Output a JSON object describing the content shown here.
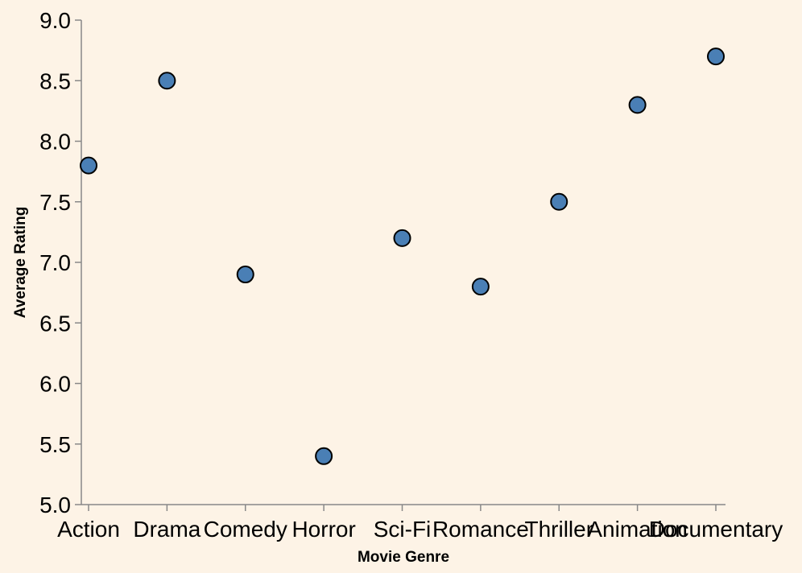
{
  "chart_data": {
    "type": "scatter",
    "xlabel": "Movie Genre",
    "ylabel": "Average Rating",
    "categories": [
      "Action",
      "Drama",
      "Comedy",
      "Horror",
      "Sci-Fi",
      "Romance",
      "Thriller",
      "Animation",
      "Documentary"
    ],
    "values": [
      7.8,
      8.5,
      6.9,
      5.4,
      7.2,
      6.8,
      7.5,
      8.3,
      8.7
    ],
    "ylim": [
      5.0,
      9.0
    ],
    "yticks": [
      "5.0",
      "5.5",
      "6.0",
      "6.5",
      "7.0",
      "7.5",
      "8.0",
      "8.5",
      "9.0"
    ],
    "grid": false,
    "point_color": "#4a7fb5",
    "point_outline": "#000000",
    "background": "#fdf3e6"
  }
}
